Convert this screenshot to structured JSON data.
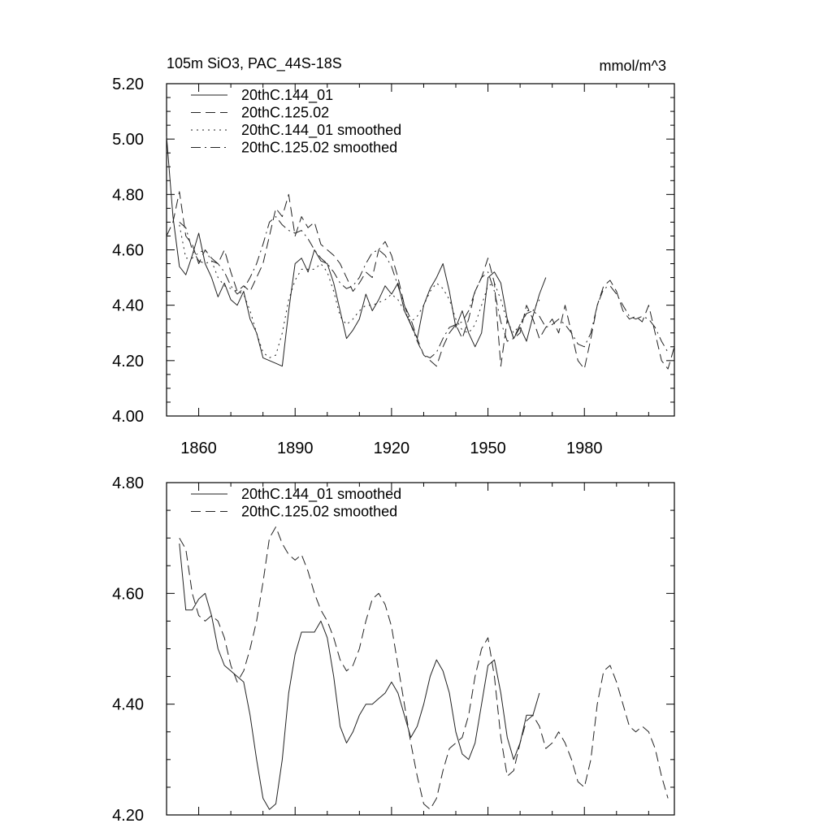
{
  "chart_data": [
    {
      "type": "line",
      "title": "105m SiO3, PAC_44S-18S",
      "units": "mmol/m^3",
      "xlim": [
        1850,
        2008
      ],
      "ylim": [
        4.0,
        5.2
      ],
      "xticks": [
        1860,
        1890,
        1920,
        1950,
        1980
      ],
      "xtick_labels": [
        "1860",
        "1890",
        "1920",
        "1950",
        "1980"
      ],
      "yticks": [
        4.0,
        4.2,
        4.4,
        4.6,
        4.8,
        5.0,
        5.2
      ],
      "ytick_labels": [
        "4.00",
        "4.20",
        "4.40",
        "4.60",
        "4.80",
        "5.00",
        "5.20"
      ],
      "legend_position": "top-left",
      "series": [
        {
          "name": "20thC.144_01",
          "dash": "solid",
          "x": [
            1850,
            1852,
            1854,
            1856,
            1858,
            1860,
            1862,
            1864,
            1866,
            1868,
            1870,
            1872,
            1874,
            1876,
            1878,
            1880,
            1882,
            1884,
            1886,
            1888,
            1890,
            1892,
            1894,
            1896,
            1898,
            1900,
            1902,
            1904,
            1906,
            1908,
            1910,
            1912,
            1914,
            1916,
            1918,
            1920,
            1922,
            1924,
            1926,
            1928,
            1930,
            1932,
            1934,
            1936,
            1938,
            1940,
            1942,
            1944,
            1946,
            1948,
            1950,
            1952,
            1954,
            1956,
            1958,
            1960,
            1962,
            1964,
            1966,
            1968
          ],
          "y": [
            5.01,
            4.72,
            4.54,
            4.51,
            4.58,
            4.66,
            4.55,
            4.5,
            4.43,
            4.48,
            4.42,
            4.4,
            4.45,
            4.35,
            4.3,
            4.21,
            4.2,
            4.19,
            4.18,
            4.38,
            4.55,
            4.57,
            4.52,
            4.6,
            4.56,
            4.55,
            4.48,
            4.38,
            4.28,
            4.31,
            4.35,
            4.44,
            4.38,
            4.42,
            4.47,
            4.44,
            4.48,
            4.38,
            4.33,
            4.28,
            4.4,
            4.46,
            4.5,
            4.55,
            4.45,
            4.32,
            4.38,
            4.3,
            4.25,
            4.3,
            4.5,
            4.52,
            4.48,
            4.35,
            4.28,
            4.32,
            4.27,
            4.36,
            4.44,
            4.5
          ]
        },
        {
          "name": "20thC.125.02",
          "dash": "dash",
          "x": [
            1850,
            1852,
            1854,
            1856,
            1858,
            1860,
            1862,
            1864,
            1866,
            1868,
            1870,
            1872,
            1874,
            1876,
            1878,
            1880,
            1882,
            1884,
            1886,
            1888,
            1890,
            1892,
            1894,
            1896,
            1898,
            1900,
            1902,
            1904,
            1906,
            1908,
            1910,
            1912,
            1914,
            1916,
            1918,
            1920,
            1922,
            1924,
            1926,
            1928,
            1930,
            1932,
            1934,
            1936,
            1938,
            1940,
            1942,
            1944,
            1946,
            1948,
            1950,
            1952,
            1954,
            1956,
            1958,
            1960,
            1962,
            1964,
            1966,
            1968,
            1970,
            1972,
            1974,
            1976,
            1978,
            1980,
            1982,
            1984,
            1986,
            1988,
            1990,
            1992,
            1994,
            1996,
            1998,
            2000,
            2002,
            2004,
            2006,
            2008
          ],
          "y": [
            4.65,
            4.7,
            4.81,
            4.65,
            4.62,
            4.55,
            4.6,
            4.57,
            4.55,
            4.6,
            4.52,
            4.45,
            4.47,
            4.45,
            4.5,
            4.55,
            4.65,
            4.75,
            4.72,
            4.8,
            4.65,
            4.72,
            4.68,
            4.7,
            4.62,
            4.6,
            4.58,
            4.55,
            4.5,
            4.45,
            4.48,
            4.52,
            4.5,
            4.6,
            4.63,
            4.58,
            4.5,
            4.4,
            4.35,
            4.28,
            4.22,
            4.2,
            4.18,
            4.25,
            4.3,
            4.33,
            4.28,
            4.35,
            4.45,
            4.5,
            4.57,
            4.48,
            4.18,
            4.35,
            4.28,
            4.3,
            4.4,
            4.35,
            4.28,
            4.32,
            4.35,
            4.3,
            4.4,
            4.3,
            4.2,
            4.17,
            4.28,
            4.4,
            4.47,
            4.49,
            4.45,
            4.38,
            4.35,
            4.36,
            4.34,
            4.4,
            4.3,
            4.2,
            4.17,
            4.25
          ]
        },
        {
          "name": "20thC.144_01 smoothed",
          "dash": "dot",
          "x": [
            1854,
            1856,
            1858,
            1860,
            1862,
            1864,
            1866,
            1868,
            1870,
            1872,
            1874,
            1876,
            1878,
            1880,
            1882,
            1884,
            1886,
            1888,
            1890,
            1892,
            1894,
            1896,
            1898,
            1900,
            1902,
            1904,
            1906,
            1908,
            1910,
            1912,
            1914,
            1916,
            1918,
            1920,
            1922,
            1924,
            1926,
            1928,
            1930,
            1932,
            1934,
            1936,
            1938,
            1940,
            1942,
            1944,
            1946,
            1948,
            1950,
            1952,
            1954,
            1956,
            1958,
            1960,
            1962,
            1964,
            1966
          ],
          "y": [
            4.69,
            4.57,
            4.57,
            4.59,
            4.6,
            4.56,
            4.5,
            4.47,
            4.46,
            4.45,
            4.44,
            4.38,
            4.3,
            4.23,
            4.21,
            4.22,
            4.3,
            4.42,
            4.49,
            4.53,
            4.53,
            4.53,
            4.55,
            4.52,
            4.45,
            4.36,
            4.33,
            4.35,
            4.38,
            4.4,
            4.4,
            4.41,
            4.42,
            4.44,
            4.42,
            4.38,
            4.34,
            4.36,
            4.4,
            4.45,
            4.48,
            4.46,
            4.42,
            4.35,
            4.31,
            4.3,
            4.33,
            4.4,
            4.47,
            4.48,
            4.42,
            4.34,
            4.3,
            4.33,
            4.38,
            4.38,
            4.42
          ]
        },
        {
          "name": "20thC.125.02 smoothed",
          "dash": "dashdot",
          "x": [
            1854,
            1856,
            1858,
            1860,
            1862,
            1864,
            1866,
            1868,
            1870,
            1872,
            1874,
            1876,
            1878,
            1880,
            1882,
            1884,
            1886,
            1888,
            1890,
            1892,
            1894,
            1896,
            1898,
            1900,
            1902,
            1904,
            1906,
            1908,
            1910,
            1912,
            1914,
            1916,
            1918,
            1920,
            1922,
            1924,
            1926,
            1928,
            1930,
            1932,
            1934,
            1936,
            1938,
            1940,
            1942,
            1944,
            1946,
            1948,
            1950,
            1952,
            1954,
            1956,
            1958,
            1960,
            1962,
            1964,
            1966,
            1968,
            1970,
            1972,
            1974,
            1976,
            1978,
            1980,
            1982,
            1984,
            1986,
            1988,
            1990,
            1992,
            1994,
            1996,
            1998,
            2000,
            2002,
            2004,
            2006
          ],
          "y": [
            4.7,
            4.68,
            4.6,
            4.56,
            4.55,
            4.56,
            4.55,
            4.52,
            4.47,
            4.44,
            4.46,
            4.5,
            4.55,
            4.62,
            4.7,
            4.72,
            4.69,
            4.67,
            4.66,
            4.67,
            4.64,
            4.6,
            4.57,
            4.55,
            4.52,
            4.48,
            4.46,
            4.47,
            4.5,
            4.55,
            4.59,
            4.6,
            4.58,
            4.54,
            4.47,
            4.4,
            4.33,
            4.27,
            4.22,
            4.21,
            4.23,
            4.28,
            4.32,
            4.33,
            4.34,
            4.38,
            4.45,
            4.5,
            4.52,
            4.45,
            4.34,
            4.27,
            4.28,
            4.33,
            4.37,
            4.38,
            4.36,
            4.32,
            4.33,
            4.35,
            4.33,
            4.3,
            4.26,
            4.25,
            4.3,
            4.4,
            4.46,
            4.47,
            4.44,
            4.4,
            4.36,
            4.35,
            4.36,
            4.35,
            4.32,
            4.27,
            4.23
          ]
        }
      ]
    },
    {
      "type": "line",
      "xlim": [
        1850,
        2008
      ],
      "ylim": [
        4.2,
        4.8
      ],
      "xticks": [
        1860,
        1890,
        1920,
        1950,
        1980
      ],
      "yticks": [
        4.2,
        4.4,
        4.6,
        4.8
      ],
      "ytick_labels": [
        "4.20",
        "4.40",
        "4.60",
        "4.80"
      ],
      "legend_position": "top-left",
      "series": [
        {
          "name": "20thC.144_01 smoothed",
          "dash": "solid",
          "x": [
            1854,
            1856,
            1858,
            1860,
            1862,
            1864,
            1866,
            1868,
            1870,
            1872,
            1874,
            1876,
            1878,
            1880,
            1882,
            1884,
            1886,
            1888,
            1890,
            1892,
            1894,
            1896,
            1898,
            1900,
            1902,
            1904,
            1906,
            1908,
            1910,
            1912,
            1914,
            1916,
            1918,
            1920,
            1922,
            1924,
            1926,
            1928,
            1930,
            1932,
            1934,
            1936,
            1938,
            1940,
            1942,
            1944,
            1946,
            1948,
            1950,
            1952,
            1954,
            1956,
            1958,
            1960,
            1962,
            1964,
            1966
          ],
          "y": [
            4.69,
            4.57,
            4.57,
            4.59,
            4.6,
            4.56,
            4.5,
            4.47,
            4.46,
            4.45,
            4.44,
            4.38,
            4.3,
            4.23,
            4.21,
            4.22,
            4.3,
            4.42,
            4.49,
            4.53,
            4.53,
            4.53,
            4.55,
            4.52,
            4.45,
            4.36,
            4.33,
            4.35,
            4.38,
            4.4,
            4.4,
            4.41,
            4.42,
            4.44,
            4.42,
            4.38,
            4.34,
            4.36,
            4.4,
            4.45,
            4.48,
            4.46,
            4.42,
            4.35,
            4.31,
            4.3,
            4.33,
            4.4,
            4.47,
            4.48,
            4.42,
            4.34,
            4.3,
            4.33,
            4.38,
            4.38,
            4.42
          ]
        },
        {
          "name": "20thC.125.02 smoothed",
          "dash": "dash",
          "x": [
            1854,
            1856,
            1858,
            1860,
            1862,
            1864,
            1866,
            1868,
            1870,
            1872,
            1874,
            1876,
            1878,
            1880,
            1882,
            1884,
            1886,
            1888,
            1890,
            1892,
            1894,
            1896,
            1898,
            1900,
            1902,
            1904,
            1906,
            1908,
            1910,
            1912,
            1914,
            1916,
            1918,
            1920,
            1922,
            1924,
            1926,
            1928,
            1930,
            1932,
            1934,
            1936,
            1938,
            1940,
            1942,
            1944,
            1946,
            1948,
            1950,
            1952,
            1954,
            1956,
            1958,
            1960,
            1962,
            1964,
            1966,
            1968,
            1970,
            1972,
            1974,
            1976,
            1978,
            1980,
            1982,
            1984,
            1986,
            1988,
            1990,
            1992,
            1994,
            1996,
            1998,
            2000,
            2002,
            2004,
            2006
          ],
          "y": [
            4.7,
            4.68,
            4.6,
            4.56,
            4.55,
            4.56,
            4.55,
            4.52,
            4.47,
            4.44,
            4.46,
            4.5,
            4.55,
            4.62,
            4.7,
            4.72,
            4.69,
            4.67,
            4.66,
            4.67,
            4.64,
            4.6,
            4.57,
            4.55,
            4.52,
            4.48,
            4.46,
            4.47,
            4.5,
            4.55,
            4.59,
            4.6,
            4.58,
            4.54,
            4.47,
            4.4,
            4.33,
            4.27,
            4.22,
            4.21,
            4.23,
            4.28,
            4.32,
            4.33,
            4.34,
            4.38,
            4.45,
            4.5,
            4.52,
            4.45,
            4.34,
            4.27,
            4.28,
            4.33,
            4.37,
            4.38,
            4.36,
            4.32,
            4.33,
            4.35,
            4.33,
            4.3,
            4.26,
            4.25,
            4.3,
            4.4,
            4.46,
            4.47,
            4.44,
            4.4,
            4.36,
            4.35,
            4.36,
            4.35,
            4.32,
            4.27,
            4.23
          ]
        }
      ]
    }
  ]
}
